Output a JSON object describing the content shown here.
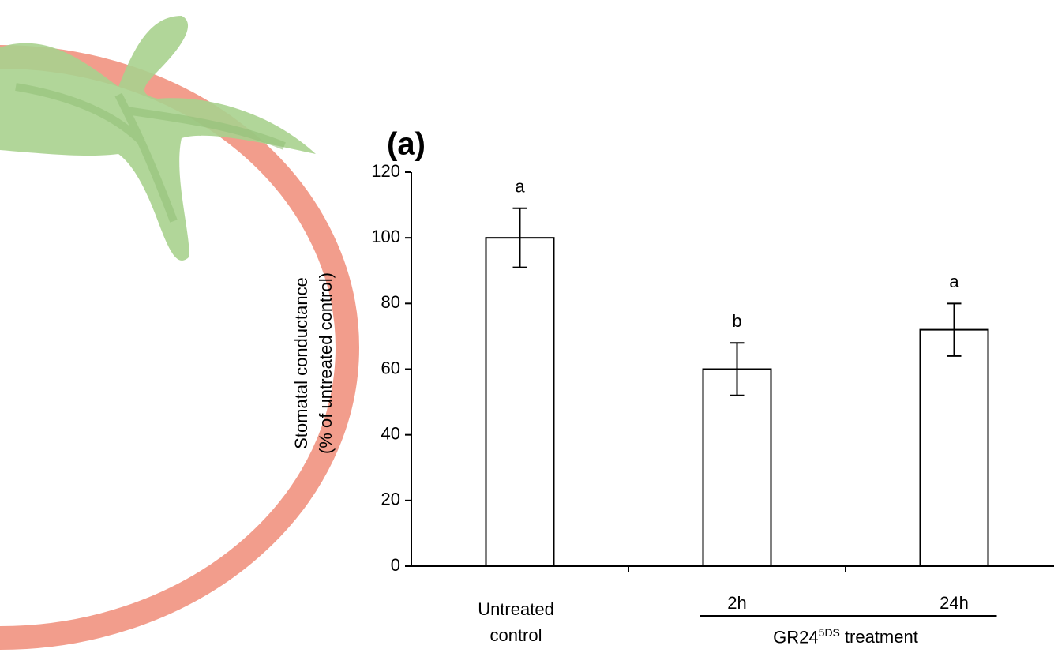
{
  "chart_data": {
    "type": "bar",
    "panel_label": "(a)",
    "ylabel": [
      "Stomatal conductance",
      "(% of untreated control)"
    ],
    "categories": [
      "Untreated control",
      "2h",
      "24h"
    ],
    "values": [
      100,
      60,
      72
    ],
    "errors": [
      9,
      8,
      8
    ],
    "significance_letters": [
      "a",
      "b",
      "a"
    ],
    "color": "#ffffff",
    "edgecolor": "#000000",
    "group": {
      "text": "GR24",
      "superscript": "5DS",
      "after": "treatment",
      "categories": [
        1,
        2
      ]
    },
    "ylim": [
      0,
      120
    ],
    "yticks": [
      0,
      20,
      40,
      60,
      80,
      100,
      120
    ],
    "grid": false
  }
}
